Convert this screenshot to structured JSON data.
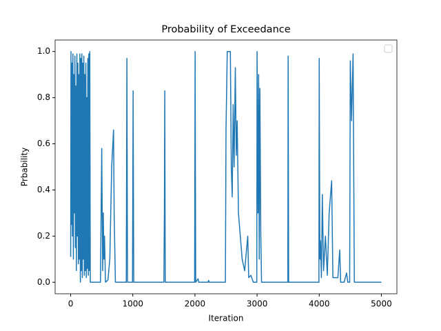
{
  "chart_data": {
    "type": "line",
    "title": "Probability of Exceedance",
    "x_label": "Iteration",
    "y_label": "Prbability",
    "color": "#1f77b4",
    "legend": "upper right",
    "x": [
      0,
      5,
      12,
      20,
      28,
      36,
      44,
      52,
      60,
      68,
      76,
      84,
      92,
      100,
      108,
      116,
      124,
      132,
      140,
      148,
      156,
      164,
      172,
      180,
      188,
      196,
      204,
      212,
      220,
      228,
      236,
      244,
      252,
      260,
      268,
      276,
      284,
      292,
      300,
      308,
      316,
      480,
      500,
      515,
      525,
      535,
      545,
      560,
      600,
      630,
      660,
      690,
      700,
      720,
      895,
      905,
      915,
      995,
      1005,
      1015,
      1500,
      1508,
      1515,
      1522,
      1995,
      2003,
      2012,
      2050,
      2060,
      2210,
      2220,
      2230,
      2490,
      2500,
      2520,
      2570,
      2585,
      2600,
      2615,
      2630,
      2650,
      2665,
      2680,
      2700,
      2730,
      2760,
      2800,
      2850,
      2865,
      2900,
      2940,
      2995,
      3000,
      3015,
      3025,
      3035,
      3045,
      3060,
      3072,
      3495,
      3500,
      3508,
      3995,
      4000,
      4010,
      4020,
      4035,
      4050,
      4070,
      4100,
      4130,
      4160,
      4200,
      4220,
      4300,
      4330,
      4345,
      4400,
      4440,
      4460,
      4490,
      4500,
      4520,
      4545,
      4565,
      5000
    ],
    "values": [
      0.11,
      1.0,
      0.25,
      0.95,
      0.2,
      0.99,
      0.1,
      0.9,
      0.3,
      0.98,
      0.15,
      0.85,
      0.05,
      0.99,
      0.2,
      0.95,
      0.08,
      0.9,
      0.1,
      0.99,
      0.0,
      0.97,
      0.05,
      0.99,
      0.02,
      0.95,
      0.1,
      0.98,
      0.03,
      0.9,
      0.05,
      0.95,
      0.02,
      0.8,
      0.06,
      0.97,
      0.03,
      0.99,
      0.05,
      1.0,
      0.0,
      0.0,
      0.58,
      0.05,
      0.3,
      0.1,
      0.2,
      0.0,
      0.01,
      0.1,
      0.5,
      0.66,
      0.3,
      0.0,
      0.0,
      0.97,
      0.0,
      0.0,
      0.83,
      0.0,
      0.0,
      0.29,
      0.83,
      0.0,
      0.0,
      1.0,
      0.0,
      0.015,
      0.0,
      0.0,
      0.008,
      0.0,
      0.0,
      0.66,
      1.0,
      1.0,
      0.5,
      0.37,
      0.77,
      0.5,
      0.93,
      0.55,
      0.7,
      0.3,
      0.2,
      0.1,
      0.05,
      0.2,
      0.02,
      0.03,
      0.0,
      0.0,
      1.0,
      0.3,
      0.9,
      0.1,
      0.84,
      0.2,
      0.0,
      0.0,
      0.98,
      0.0,
      0.0,
      0.97,
      0.1,
      0.18,
      0.02,
      0.38,
      0.05,
      0.2,
      0.03,
      0.3,
      0.44,
      0.02,
      0.02,
      0.14,
      0.0,
      0.0,
      0.04,
      0.0,
      0.0,
      0.96,
      0.7,
      0.99,
      0.0,
      0.0
    ],
    "xlim": [
      -250,
      5250
    ],
    "ylim": [
      -0.05,
      1.05
    ],
    "xticks": [
      0,
      1000,
      2000,
      3000,
      4000,
      5000
    ],
    "yticks": [
      {
        "value": 0,
        "label": "0.0"
      },
      0.2,
      0.4,
      0.6,
      0.8,
      {
        "value": 1,
        "label": "1.0"
      }
    ]
  }
}
